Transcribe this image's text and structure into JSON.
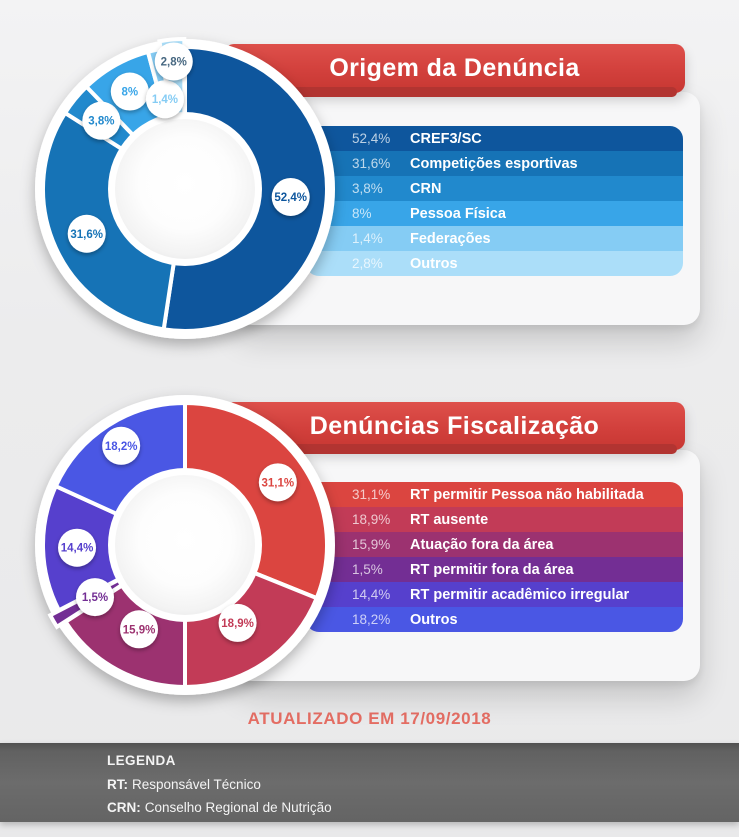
{
  "chart_data": [
    {
      "type": "pie",
      "variant": "donut",
      "title": "Origem da Denúncia",
      "legend_position": "right",
      "items": [
        {
          "label": "CREF3/SC",
          "pct": "52,4%",
          "value": 52.4,
          "color": "#0e569d"
        },
        {
          "label": "Competições esportivas",
          "pct": "31,6%",
          "value": 31.6,
          "color": "#1673b6"
        },
        {
          "label": "CRN",
          "pct": "3,8%",
          "value": 3.8,
          "color": "#2189cd"
        },
        {
          "label": "Pessoa Física",
          "pct": "8%",
          "value": 8,
          "color": "#38a5e8"
        },
        {
          "label": "Federações",
          "pct": "1,4%",
          "value": 1.4,
          "color": "#85ccf4"
        },
        {
          "label": "Outros",
          "pct": "2,8%",
          "value": 2.8,
          "color": "#abdef9",
          "bubble_text_color": "#476781"
        }
      ]
    },
    {
      "type": "pie",
      "variant": "donut",
      "title": "Denúncias Fiscalização",
      "legend_position": "right",
      "items": [
        {
          "label": "RT permitir Pessoa não habilitada",
          "pct": "31,1%",
          "value": 31.1,
          "color": "#db4540"
        },
        {
          "label": "RT ausente",
          "pct": "18,9%",
          "value": 18.9,
          "color": "#c23b57"
        },
        {
          "label": "Atuação fora da área",
          "pct": "15,9%",
          "value": 15.9,
          "color": "#9c3270"
        },
        {
          "label": "RT permitir fora da área",
          "pct": "1,5%",
          "value": 1.5,
          "color": "#732e94"
        },
        {
          "label": "RT permitir acadêmico irregular",
          "pct": "14,4%",
          "value": 14.4,
          "color": "#5640cd"
        },
        {
          "label": "Outros",
          "pct": "18,2%",
          "value": 18.2,
          "color": "#4a57e4"
        }
      ]
    }
  ],
  "updated": {
    "text": "ATUALIZADO EM 17/09/2018",
    "color": "#e56e64"
  },
  "footer": {
    "heading": "LEGENDA",
    "entries": [
      {
        "abbr": "RT:",
        "text": "Responsável Técnico"
      },
      {
        "abbr": "CRN:",
        "text": "Conselho Regional de Nutrição"
      }
    ]
  }
}
